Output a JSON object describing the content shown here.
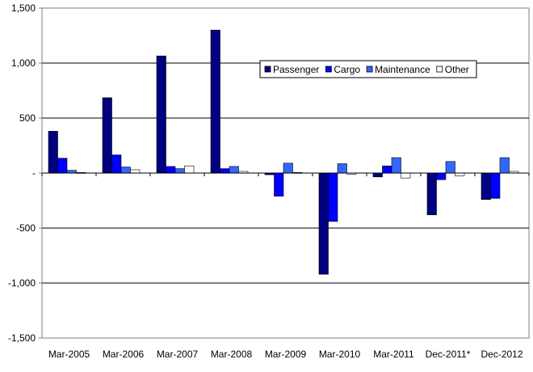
{
  "chart_data": {
    "type": "bar",
    "categories": [
      "Mar-2005",
      "Mar-2006",
      "Mar-2007",
      "Mar-2008",
      "Mar-2009",
      "Mar-2010",
      "Mar-2011",
      "Dec-2011*",
      "Dec-2012"
    ],
    "series": [
      {
        "name": "Passenger",
        "color": "#000080",
        "values": [
          380,
          685,
          1065,
          1300,
          -15,
          -920,
          -35,
          -380,
          -240
        ]
      },
      {
        "name": "Cargo",
        "color": "#0000FF",
        "values": [
          135,
          165,
          60,
          40,
          -210,
          -440,
          65,
          -60,
          -230
        ]
      },
      {
        "name": "Maintenance",
        "color": "#3366FF",
        "values": [
          25,
          55,
          40,
          60,
          90,
          85,
          140,
          105,
          140
        ]
      },
      {
        "name": "Other",
        "color": "#FFFFFF",
        "values": [
          5,
          30,
          65,
          15,
          5,
          -10,
          -45,
          -25,
          15
        ]
      }
    ],
    "yticks": [
      "1,500",
      "1,000",
      "500",
      "-",
      "-500",
      "-1,000",
      "-1,500"
    ],
    "ylim": [
      -1500,
      1500
    ],
    "ytick_step": 500,
    "title": "",
    "xlabel": "",
    "ylabel": "",
    "grid": "horizontal",
    "legend_position": "top-right"
  }
}
